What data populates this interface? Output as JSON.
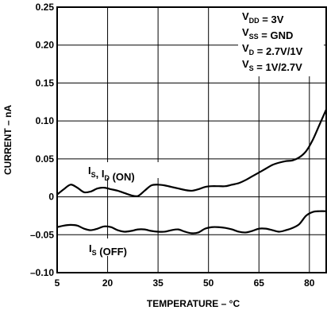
{
  "chart_data": {
    "type": "line",
    "xlabel": "TEMPERATURE – °C",
    "ylabel": "CURRENT – nA",
    "xlim": [
      5,
      85
    ],
    "ylim": [
      -0.1,
      0.25
    ],
    "x_ticks": [
      "5",
      "20",
      "35",
      "50",
      "65",
      "80"
    ],
    "y_ticks": [
      "0.25",
      "0.20",
      "0.15",
      "0.10",
      "0.05",
      "0",
      "–0.05",
      "–0.10"
    ],
    "grid": true,
    "conditions": [
      {
        "main": "V",
        "sub": "DD",
        "rest": " = 3V"
      },
      {
        "main": "V",
        "sub": "SS",
        "rest": " = GND"
      },
      {
        "main": "V",
        "sub": "D",
        "rest": " = 2.7V/1V"
      },
      {
        "main": "V",
        "sub": "S",
        "rest": " = 1V/2.7V"
      }
    ],
    "series": [
      {
        "name": "I_S, I_D (ON)",
        "label_parts": [
          {
            "main": "I",
            "sub": "S"
          },
          {
            "main": ", I",
            "sub": "D"
          },
          {
            "main": " (ON)",
            "sub": ""
          }
        ],
        "x": [
          5,
          7,
          9,
          11,
          13,
          15,
          17,
          19,
          21,
          23,
          25,
          27,
          29,
          31,
          33,
          35,
          37,
          39,
          41,
          43,
          45,
          47,
          49,
          51,
          53,
          55,
          57,
          59,
          61,
          63,
          65,
          67,
          69,
          71,
          73,
          75,
          77,
          79,
          81,
          83,
          85
        ],
        "y": [
          0.003,
          0.01,
          0.016,
          0.012,
          0.006,
          0.007,
          0.011,
          0.012,
          0.01,
          0.008,
          0.005,
          0.002,
          0.001,
          0.008,
          0.015,
          0.016,
          0.015,
          0.013,
          0.011,
          0.009,
          0.008,
          0.01,
          0.013,
          0.014,
          0.014,
          0.014,
          0.016,
          0.018,
          0.022,
          0.027,
          0.032,
          0.037,
          0.042,
          0.045,
          0.047,
          0.048,
          0.052,
          0.06,
          0.075,
          0.095,
          0.115
        ]
      },
      {
        "name": "I_S (OFF)",
        "label_parts": [
          {
            "main": "I",
            "sub": "S"
          },
          {
            "main": " (OFF)",
            "sub": ""
          }
        ],
        "x": [
          5,
          7,
          9,
          11,
          13,
          15,
          17,
          19,
          21,
          23,
          25,
          27,
          29,
          31,
          33,
          35,
          37,
          39,
          41,
          43,
          45,
          47,
          49,
          51,
          53,
          55,
          57,
          59,
          61,
          63,
          65,
          67,
          69,
          71,
          73,
          75,
          77,
          79,
          81,
          83,
          85
        ],
        "y": [
          -0.04,
          -0.038,
          -0.037,
          -0.038,
          -0.042,
          -0.044,
          -0.042,
          -0.039,
          -0.04,
          -0.044,
          -0.046,
          -0.045,
          -0.043,
          -0.043,
          -0.045,
          -0.046,
          -0.046,
          -0.044,
          -0.043,
          -0.046,
          -0.048,
          -0.047,
          -0.042,
          -0.04,
          -0.04,
          -0.041,
          -0.043,
          -0.046,
          -0.047,
          -0.045,
          -0.042,
          -0.042,
          -0.044,
          -0.046,
          -0.044,
          -0.041,
          -0.036,
          -0.025,
          -0.02,
          -0.019,
          -0.019
        ]
      }
    ]
  }
}
